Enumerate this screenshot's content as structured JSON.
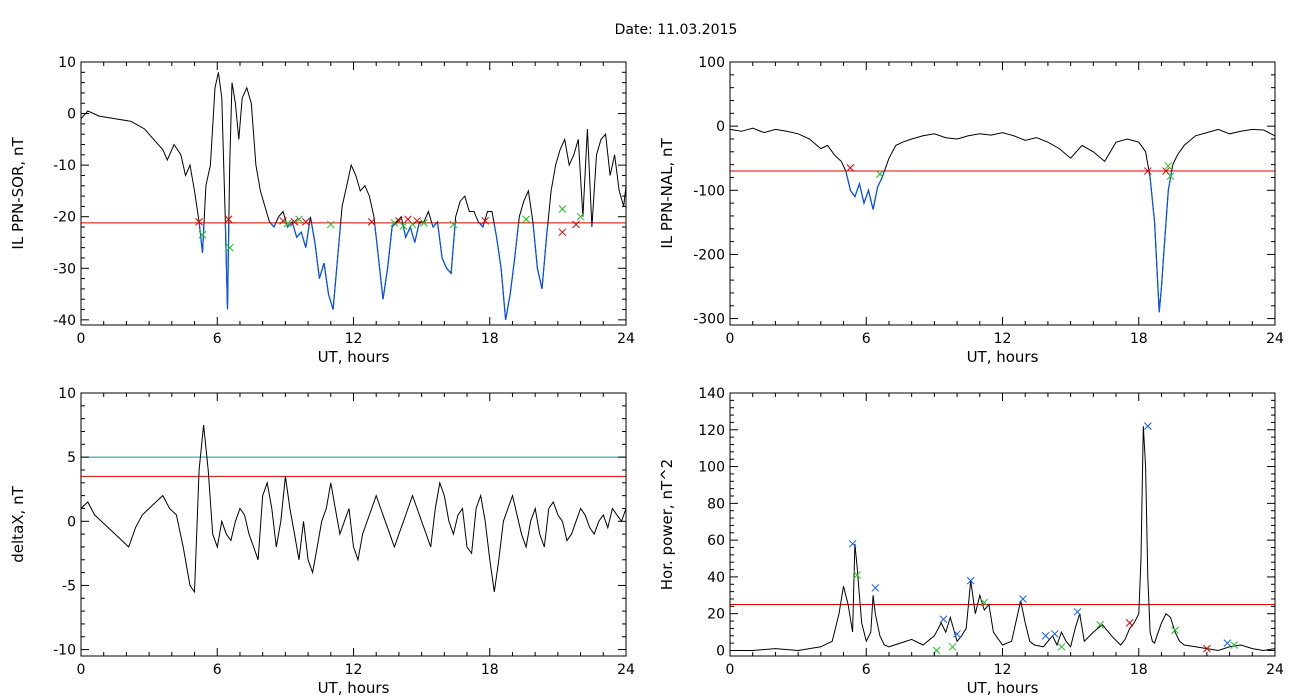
{
  "title": "Date:  11.03.2015",
  "colors": {
    "frame": "#000000",
    "trace": "#000000",
    "below_threshold": "#0050ff",
    "threshold": "#e00000",
    "upper_threshold": "#009e9e",
    "marker_red": "#e00000",
    "marker_green": "#20c020",
    "marker_blue": "#1060ff"
  },
  "chart_data": [
    {
      "id": "il_sor",
      "type": "line",
      "ylabel": "IL PPN-SOR, nT",
      "xlabel": "UT, hours",
      "xlim": [
        0,
        24
      ],
      "ylim": [
        -41,
        10
      ],
      "xticks": [
        0,
        6,
        12,
        18,
        24
      ],
      "yticks": [
        -40,
        -30,
        -20,
        -10,
        0,
        10
      ],
      "thresholds": [
        {
          "value": -21.2,
          "color": "red"
        }
      ],
      "highlight_below": -21.2,
      "series": [
        {
          "x": [
            0,
            0.3,
            0.8,
            1.5,
            2.2,
            2.8,
            3.2,
            3.6,
            3.8,
            4.1,
            4.4,
            4.6,
            4.8,
            5.0,
            5.2,
            5.35,
            5.5,
            5.7,
            5.9,
            6.05,
            6.2,
            6.35,
            6.45,
            6.55,
            6.65,
            6.8,
            6.95,
            7.1,
            7.3,
            7.5,
            7.7,
            7.9,
            8.1,
            8.3,
            8.5,
            8.7,
            8.9,
            9.1,
            9.3,
            9.5,
            9.7,
            9.9,
            10.1,
            10.3,
            10.5,
            10.7,
            10.9,
            11.1,
            11.3,
            11.5,
            11.7,
            11.9,
            12.1,
            12.3,
            12.5,
            12.7,
            12.9,
            13.1,
            13.3,
            13.5,
            13.7,
            13.9,
            14.1,
            14.3,
            14.5,
            14.7,
            14.9,
            15.1,
            15.3,
            15.5,
            15.7,
            15.9,
            16.1,
            16.3,
            16.5,
            16.7,
            16.9,
            17.1,
            17.3,
            17.5,
            17.7,
            17.9,
            18.1,
            18.3,
            18.5,
            18.7,
            18.9,
            19.1,
            19.3,
            19.5,
            19.7,
            19.9,
            20.1,
            20.3,
            20.5,
            20.7,
            20.9,
            21.1,
            21.3,
            21.5,
            21.7,
            21.9,
            22.1,
            22.3,
            22.5,
            22.7,
            22.9,
            23.1,
            23.3,
            23.5,
            23.7,
            23.9,
            24
          ],
          "y": [
            -1,
            0.5,
            -0.5,
            -1,
            -1.5,
            -3,
            -5,
            -7,
            -9,
            -6,
            -8,
            -12,
            -10,
            -15,
            -21,
            -27,
            -14,
            -10,
            5,
            8,
            3,
            -20,
            -38,
            -10,
            6,
            2,
            -5,
            3,
            5,
            2,
            -10,
            -15,
            -18,
            -21,
            -22,
            -20,
            -19,
            -22,
            -21,
            -24,
            -23,
            -26,
            -20,
            -25,
            -32,
            -29,
            -35,
            -38,
            -28,
            -18,
            -14,
            -10,
            -12,
            -15,
            -14,
            -16,
            -20,
            -28,
            -36,
            -30,
            -22,
            -21,
            -20,
            -24,
            -22,
            -25,
            -21,
            -21,
            -19,
            -22,
            -21,
            -28,
            -30,
            -31,
            -20,
            -17,
            -16,
            -19,
            -19,
            -21,
            -22,
            -19,
            -19,
            -24,
            -30,
            -40,
            -35,
            -28,
            -20,
            -17,
            -15,
            -21,
            -30,
            -34,
            -24,
            -15,
            -10,
            -7,
            -5,
            -10,
            -8,
            -5,
            -20,
            -3,
            -22,
            -8,
            -5,
            -4,
            -12,
            -8,
            -15,
            -18,
            -14
          ]
        }
      ],
      "markers": [
        {
          "x": 5.2,
          "y": -21,
          "c": "red"
        },
        {
          "x": 5.35,
          "y": -23.5,
          "c": "green"
        },
        {
          "x": 6.5,
          "y": -20.5,
          "c": "red"
        },
        {
          "x": 6.55,
          "y": -26,
          "c": "green"
        },
        {
          "x": 8.9,
          "y": -20.8,
          "c": "red"
        },
        {
          "x": 9.1,
          "y": -21.3,
          "c": "green"
        },
        {
          "x": 9.4,
          "y": -21,
          "c": "red"
        },
        {
          "x": 9.6,
          "y": -20.5,
          "c": "green"
        },
        {
          "x": 9.9,
          "y": -21,
          "c": "red"
        },
        {
          "x": 11.0,
          "y": -21.5,
          "c": "green"
        },
        {
          "x": 12.8,
          "y": -21,
          "c": "red"
        },
        {
          "x": 13.8,
          "y": -21.2,
          "c": "green"
        },
        {
          "x": 14.0,
          "y": -20.8,
          "c": "red"
        },
        {
          "x": 14.2,
          "y": -21.8,
          "c": "green"
        },
        {
          "x": 14.4,
          "y": -20.5,
          "c": "red"
        },
        {
          "x": 14.6,
          "y": -21.5,
          "c": "green"
        },
        {
          "x": 14.8,
          "y": -20.8,
          "c": "red"
        },
        {
          "x": 15.1,
          "y": -21.2,
          "c": "green"
        },
        {
          "x": 16.4,
          "y": -21.5,
          "c": "green"
        },
        {
          "x": 17.8,
          "y": -20.8,
          "c": "red"
        },
        {
          "x": 19.6,
          "y": -20.5,
          "c": "green"
        },
        {
          "x": 21.2,
          "y": -18.5,
          "c": "green"
        },
        {
          "x": 21.2,
          "y": -23,
          "c": "red"
        },
        {
          "x": 21.8,
          "y": -21.5,
          "c": "red"
        },
        {
          "x": 22.0,
          "y": -20,
          "c": "green"
        }
      ]
    },
    {
      "id": "il_nal",
      "type": "line",
      "ylabel": "IL PPN-NAL, nT",
      "xlabel": "UT, hours",
      "xlim": [
        0,
        24
      ],
      "ylim": [
        -310,
        100
      ],
      "xticks": [
        0,
        6,
        12,
        18,
        24
      ],
      "yticks": [
        -300,
        -200,
        -100,
        0,
        100
      ],
      "thresholds": [
        {
          "value": -70,
          "color": "red"
        }
      ],
      "highlight_below": -70,
      "series": [
        {
          "x": [
            0,
            0.5,
            1,
            1.5,
            2,
            2.5,
            3,
            3.5,
            4,
            4.3,
            4.6,
            4.9,
            5.1,
            5.3,
            5.5,
            5.7,
            5.9,
            6.1,
            6.3,
            6.5,
            6.7,
            7.0,
            7.3,
            7.6,
            8.0,
            8.5,
            9,
            9.5,
            10,
            10.5,
            11,
            11.5,
            12,
            12.5,
            13,
            13.5,
            14,
            14.5,
            15,
            15.5,
            16,
            16.5,
            17,
            17.5,
            18,
            18.3,
            18.5,
            18.7,
            18.9,
            19.0,
            19.1,
            19.3,
            19.5,
            19.7,
            20,
            20.5,
            21,
            21.5,
            22,
            22.5,
            23,
            23.5,
            24
          ],
          "y": [
            -5,
            -8,
            -3,
            -10,
            -5,
            -8,
            -12,
            -20,
            -35,
            -30,
            -45,
            -55,
            -70,
            -100,
            -110,
            -90,
            -120,
            -100,
            -130,
            -95,
            -80,
            -50,
            -30,
            -25,
            -20,
            -15,
            -12,
            -18,
            -20,
            -15,
            -12,
            -14,
            -10,
            -15,
            -22,
            -18,
            -25,
            -35,
            -50,
            -30,
            -40,
            -55,
            -25,
            -20,
            -25,
            -40,
            -80,
            -150,
            -290,
            -250,
            -200,
            -100,
            -60,
            -45,
            -30,
            -15,
            -10,
            -5,
            -12,
            -8,
            -5,
            -6,
            -15
          ]
        }
      ],
      "markers": [
        {
          "x": 5.3,
          "y": -65,
          "c": "red"
        },
        {
          "x": 6.6,
          "y": -75,
          "c": "green"
        },
        {
          "x": 18.4,
          "y": -70,
          "c": "red"
        },
        {
          "x": 19.2,
          "y": -70,
          "c": "red"
        },
        {
          "x": 19.3,
          "y": -62,
          "c": "green"
        },
        {
          "x": 19.4,
          "y": -78,
          "c": "green"
        }
      ]
    },
    {
      "id": "deltax",
      "type": "line",
      "ylabel": "deltaX, nT",
      "xlabel": "UT, hours",
      "xlim": [
        0,
        24
      ],
      "ylim": [
        -10.5,
        10
      ],
      "xticks": [
        0,
        6,
        12,
        18,
        24
      ],
      "yticks": [
        -10,
        -5,
        0,
        5,
        10
      ],
      "thresholds": [
        {
          "value": 5,
          "color": "cyan"
        },
        {
          "value": 3.5,
          "color": "red"
        }
      ],
      "series": [
        {
          "x": [
            0,
            0.3,
            0.6,
            0.9,
            1.2,
            1.5,
            1.8,
            2.1,
            2.4,
            2.7,
            3.0,
            3.3,
            3.6,
            3.9,
            4.2,
            4.5,
            4.8,
            5.0,
            5.2,
            5.4,
            5.6,
            5.8,
            6.0,
            6.2,
            6.4,
            6.6,
            6.8,
            7.0,
            7.2,
            7.4,
            7.6,
            7.8,
            8.0,
            8.2,
            8.4,
            8.6,
            8.8,
            9.0,
            9.2,
            9.4,
            9.6,
            9.8,
            10.0,
            10.2,
            10.4,
            10.6,
            10.8,
            11.0,
            11.2,
            11.4,
            11.6,
            11.8,
            12.0,
            12.2,
            12.4,
            12.6,
            12.8,
            13.0,
            13.2,
            13.4,
            13.6,
            13.8,
            14.0,
            14.2,
            14.4,
            14.6,
            14.8,
            15.0,
            15.2,
            15.4,
            15.6,
            15.8,
            16.0,
            16.2,
            16.4,
            16.6,
            16.8,
            17.0,
            17.2,
            17.4,
            17.6,
            17.8,
            18.0,
            18.2,
            18.4,
            18.6,
            18.8,
            19.0,
            19.2,
            19.4,
            19.6,
            19.8,
            20.0,
            20.2,
            20.4,
            20.6,
            20.8,
            21.0,
            21.2,
            21.4,
            21.6,
            21.8,
            22.0,
            22.2,
            22.4,
            22.6,
            22.8,
            23.0,
            23.2,
            23.4,
            23.6,
            23.8,
            24
          ],
          "y": [
            1,
            1.5,
            0.5,
            0,
            -0.5,
            -1,
            -1.5,
            -2,
            -0.5,
            0.5,
            1,
            1.5,
            2,
            1,
            0.5,
            -2,
            -5,
            -5.5,
            4,
            7.5,
            4,
            -1,
            -2,
            0,
            -1,
            -1.5,
            0,
            1,
            0.5,
            -1,
            -2,
            -3,
            2,
            3,
            1,
            -2,
            0,
            3.5,
            1,
            -1,
            -3,
            0,
            -3,
            -4,
            -2,
            0,
            1,
            3,
            1,
            -1,
            0,
            1,
            -2,
            -3,
            -1,
            0,
            1,
            2,
            1,
            0,
            -1,
            -2,
            -1,
            0,
            1,
            2,
            1,
            0,
            -1,
            -2,
            1,
            3,
            2,
            0,
            -1,
            0.5,
            1,
            -2,
            -2.5,
            1,
            2,
            0,
            -3,
            -5.5,
            -3,
            0,
            1,
            2,
            0.5,
            -1,
            -2,
            0,
            1,
            -1,
            -2,
            1,
            1.5,
            0.5,
            0,
            -1.5,
            -1,
            0,
            1,
            0.5,
            -0.5,
            -1,
            0,
            0.5,
            -0.5,
            1,
            0.5,
            0,
            1
          ]
        }
      ],
      "markers": []
    },
    {
      "id": "hor_power",
      "type": "line",
      "ylabel": "Hor. power, nT^2",
      "xlabel": "UT, hours",
      "xlim": [
        0,
        24
      ],
      "ylim": [
        -3,
        140
      ],
      "xticks": [
        0,
        6,
        12,
        18,
        24
      ],
      "yticks": [
        0,
        20,
        40,
        60,
        80,
        100,
        120,
        140
      ],
      "thresholds": [
        {
          "value": 25,
          "color": "red"
        }
      ],
      "series": [
        {
          "x": [
            0,
            1,
            2,
            3,
            4,
            4.5,
            4.8,
            5.0,
            5.2,
            5.4,
            5.5,
            5.6,
            5.7,
            5.8,
            6.0,
            6.2,
            6.3,
            6.4,
            6.6,
            6.8,
            7.0,
            7.5,
            8,
            8.5,
            9.0,
            9.3,
            9.5,
            9.7,
            10.0,
            10.2,
            10.4,
            10.6,
            10.8,
            11.0,
            11.2,
            11.4,
            11.6,
            12.0,
            12.4,
            12.8,
            13.0,
            13.2,
            13.4,
            13.8,
            14.0,
            14.2,
            14.4,
            14.6,
            14.8,
            15.0,
            15.2,
            15.4,
            15.6,
            16.0,
            16.4,
            16.8,
            17.2,
            17.4,
            17.6,
            17.8,
            18.0,
            18.1,
            18.2,
            18.3,
            18.4,
            18.5,
            18.6,
            18.7,
            18.8,
            19.0,
            19.2,
            19.4,
            19.6,
            19.8,
            20.0,
            20.5,
            21,
            21.5,
            22,
            22.5,
            23,
            23.5,
            24
          ],
          "y": [
            0,
            0,
            1,
            0,
            2,
            5,
            20,
            35,
            25,
            10,
            58,
            45,
            30,
            15,
            5,
            10,
            30,
            20,
            8,
            3,
            2,
            4,
            6,
            3,
            8,
            15,
            10,
            18,
            5,
            8,
            12,
            38,
            20,
            30,
            22,
            25,
            10,
            3,
            5,
            27,
            15,
            5,
            3,
            2,
            5,
            8,
            3,
            10,
            5,
            2,
            12,
            20,
            5,
            10,
            14,
            8,
            3,
            6,
            12,
            15,
            20,
            50,
            122,
            100,
            40,
            10,
            5,
            4,
            8,
            15,
            20,
            18,
            10,
            5,
            3,
            2,
            1,
            0,
            2,
            3,
            1,
            0,
            1
          ]
        }
      ],
      "markers": [
        {
          "x": 5.4,
          "y": 58,
          "c": "blue"
        },
        {
          "x": 5.6,
          "y": 41,
          "c": "green"
        },
        {
          "x": 6.4,
          "y": 34,
          "c": "blue"
        },
        {
          "x": 9.1,
          "y": 0,
          "c": "green"
        },
        {
          "x": 9.4,
          "y": 17,
          "c": "blue"
        },
        {
          "x": 9.8,
          "y": 2,
          "c": "green"
        },
        {
          "x": 10.0,
          "y": 9,
          "c": "blue"
        },
        {
          "x": 10.6,
          "y": 38,
          "c": "blue"
        },
        {
          "x": 11.2,
          "y": 26,
          "c": "green"
        },
        {
          "x": 12.9,
          "y": 28,
          "c": "blue"
        },
        {
          "x": 13.9,
          "y": 8,
          "c": "blue"
        },
        {
          "x": 14.3,
          "y": 9,
          "c": "blue"
        },
        {
          "x": 14.6,
          "y": 2,
          "c": "green"
        },
        {
          "x": 15.3,
          "y": 21,
          "c": "blue"
        },
        {
          "x": 16.3,
          "y": 14,
          "c": "green"
        },
        {
          "x": 17.6,
          "y": 15,
          "c": "red"
        },
        {
          "x": 18.4,
          "y": 122,
          "c": "blue"
        },
        {
          "x": 19.6,
          "y": 11,
          "c": "green"
        },
        {
          "x": 21.0,
          "y": 1,
          "c": "red"
        },
        {
          "x": 21.9,
          "y": 4,
          "c": "blue"
        },
        {
          "x": 22.2,
          "y": 3,
          "c": "green"
        }
      ]
    }
  ]
}
